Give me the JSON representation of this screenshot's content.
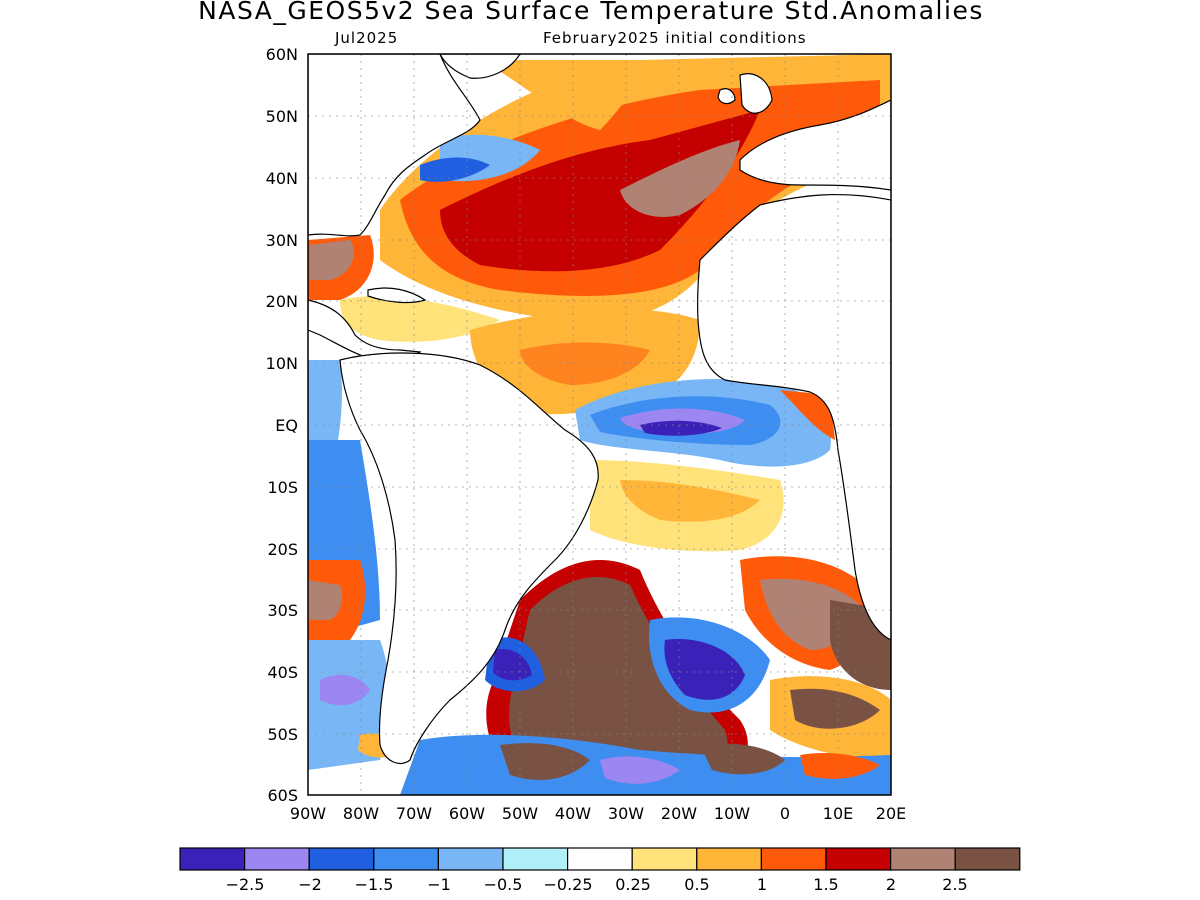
{
  "header": {
    "title": "NASA_GEOS5v2 Sea Surface Temperature Std.Anomalies",
    "valid_month": "Jul2025",
    "init_conditions": "February2025 initial conditions"
  },
  "map": {
    "lat_labels": [
      "60N",
      "50N",
      "40N",
      "30N",
      "20N",
      "10N",
      "EQ",
      "10S",
      "20S",
      "30S",
      "40S",
      "50S",
      "60S"
    ],
    "lon_labels": [
      "90W",
      "80W",
      "70W",
      "60W",
      "50W",
      "40W",
      "30W",
      "20W",
      "10W",
      "0",
      "10E",
      "20E"
    ]
  },
  "colorbar": {
    "colors": [
      "#3a22b8",
      "#9b86f2",
      "#1f5fe0",
      "#3d8ef0",
      "#78b6f6",
      "#b0eef8",
      "#ffffff",
      "#ffe27a",
      "#ffb638",
      "#ff5a0a",
      "#c40000",
      "#b08274",
      "#7a5244"
    ],
    "labels": [
      "−2.5",
      "−2",
      "−1.5",
      "−1",
      "−0.5",
      "−0.25",
      "0.25",
      "0.5",
      "1",
      "1.5",
      "2",
      "2.5"
    ]
  }
}
